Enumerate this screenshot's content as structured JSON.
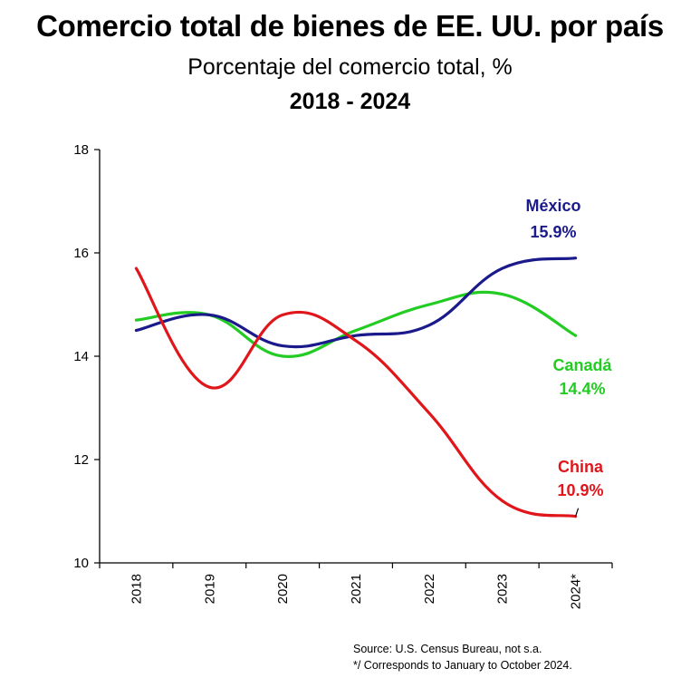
{
  "title": "Comercio total de bienes de EE. UU. por país",
  "subtitle": "Porcentaje del comercio total, %",
  "period": "2018 - 2024",
  "source": {
    "line1": "Source:  U.S. Census Bureau, not s.a.",
    "line2": "*/ Corresponds to January to October 2024."
  },
  "chart_data": {
    "type": "line",
    "x": [
      "2018",
      "2019",
      "2020",
      "2021",
      "2022",
      "2023",
      "2024*"
    ],
    "ylim": [
      10,
      18
    ],
    "yticks": [
      10,
      12,
      14,
      16,
      18
    ],
    "grid": false,
    "series": [
      {
        "name": "México",
        "end_label": "15.9%",
        "color": "#1a1a8c",
        "values": [
          14.5,
          14.8,
          14.2,
          14.4,
          14.6,
          15.7,
          15.9
        ]
      },
      {
        "name": "Canadá",
        "end_label": "14.4%",
        "color": "#22cc22",
        "values": [
          14.7,
          14.8,
          14.0,
          14.5,
          15.0,
          15.2,
          14.4
        ]
      },
      {
        "name": "China",
        "end_label": "10.9%",
        "color": "#e0161b",
        "values": [
          15.7,
          13.4,
          14.8,
          14.3,
          12.9,
          11.2,
          10.9
        ]
      }
    ]
  }
}
